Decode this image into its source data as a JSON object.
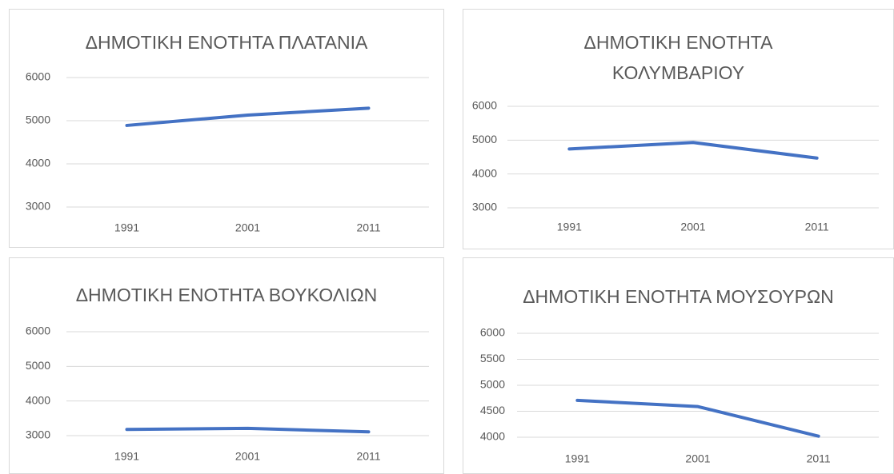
{
  "chart_data": [
    {
      "type": "line",
      "title": "ΔΗΜΟΤΙΚΗ ΕΝΟΤΗΤΑ ΠΛΑΤΑΝΙΑ",
      "categories": [
        "1991",
        "2001",
        "2011"
      ],
      "series": [
        {
          "color": "#4472c4",
          "values": [
            4890,
            5130,
            5290
          ]
        }
      ],
      "ylim": [
        3000,
        6000
      ],
      "yticks": [
        3000,
        4000,
        5000,
        6000
      ],
      "grid": true
    },
    {
      "type": "line",
      "title": "ΔΗΜΟΤΙΚΗ ΕΝΟΤΗΤΑ ΚΟΛΥΜΒΑΡΙΟΥ",
      "categories": [
        "1991",
        "2001",
        "2011"
      ],
      "series": [
        {
          "color": "#4472c4",
          "values": [
            4740,
            4930,
            4470
          ]
        }
      ],
      "ylim": [
        3000,
        6000
      ],
      "yticks": [
        3000,
        4000,
        5000,
        6000
      ],
      "grid": true
    },
    {
      "type": "line",
      "title": "ΔΗΜΟΤΙΚΗ ΕΝΟΤΗΤΑ ΒΟΥΚΟΛΙΩΝ",
      "categories": [
        "1991",
        "2001",
        "2011"
      ],
      "series": [
        {
          "color": "#4472c4",
          "values": [
            3180,
            3210,
            3110
          ]
        }
      ],
      "ylim": [
        3000,
        6000
      ],
      "yticks": [
        3000,
        4000,
        5000,
        6000
      ],
      "grid": true
    },
    {
      "type": "line",
      "title": "ΔΗΜΟΤΙΚΗ ΕΝΟΤΗΤΑ ΜΟΥΣΟΥΡΩΝ",
      "categories": [
        "1991",
        "2001",
        "2011"
      ],
      "series": [
        {
          "color": "#4472c4",
          "values": [
            4710,
            4590,
            4020
          ]
        }
      ],
      "ylim": [
        4000,
        6000
      ],
      "yticks": [
        4000,
        4500,
        5000,
        5500,
        6000
      ],
      "grid": true
    }
  ]
}
